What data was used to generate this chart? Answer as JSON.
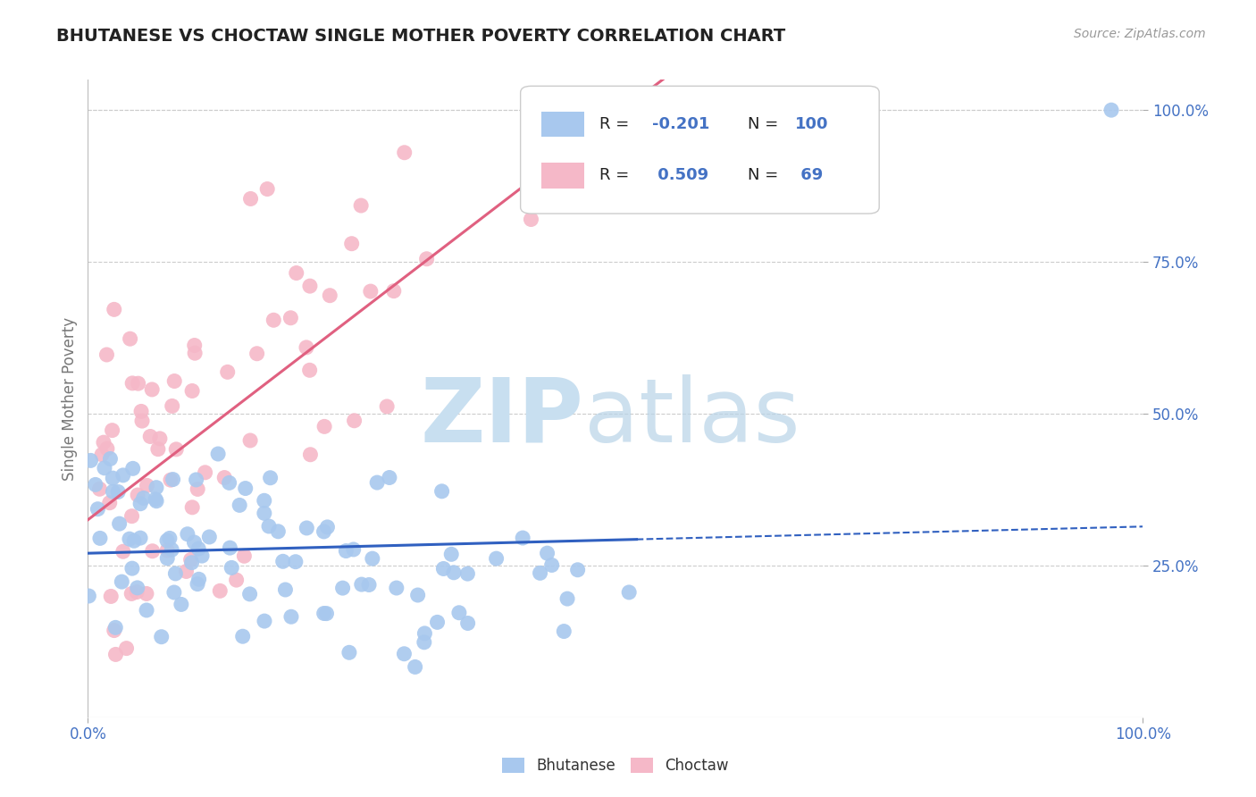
{
  "title": "BHUTANESE VS CHOCTAW SINGLE MOTHER POVERTY CORRELATION CHART",
  "source_text": "Source: ZipAtlas.com",
  "ylabel": "Single Mother Poverty",
  "xlim": [
    0.0,
    1.0
  ],
  "ylim": [
    0.0,
    1.05
  ],
  "xtick_positions": [
    0.0,
    1.0
  ],
  "xtick_labels": [
    "0.0%",
    "100.0%"
  ],
  "ytick_positions": [
    0.25,
    0.5,
    0.75,
    1.0
  ],
  "ytick_labels": [
    "25.0%",
    "50.0%",
    "75.0%",
    "100.0%"
  ],
  "bhutanese_R": -0.201,
  "bhutanese_N": 100,
  "choctaw_R": 0.509,
  "choctaw_N": 69,
  "blue_scatter_color": "#A8C8EE",
  "pink_scatter_color": "#F5B8C8",
  "blue_line_color": "#3060C0",
  "pink_line_color": "#E06080",
  "legend_text_color": "#4472C4",
  "legend_label_color": "#222222",
  "watermark_color": "#C8DFF0",
  "background_color": "#FFFFFF",
  "grid_color": "#CCCCCC",
  "title_color": "#222222",
  "axis_label_color": "#777777",
  "tick_label_color": "#4472C4",
  "source_color": "#999999"
}
